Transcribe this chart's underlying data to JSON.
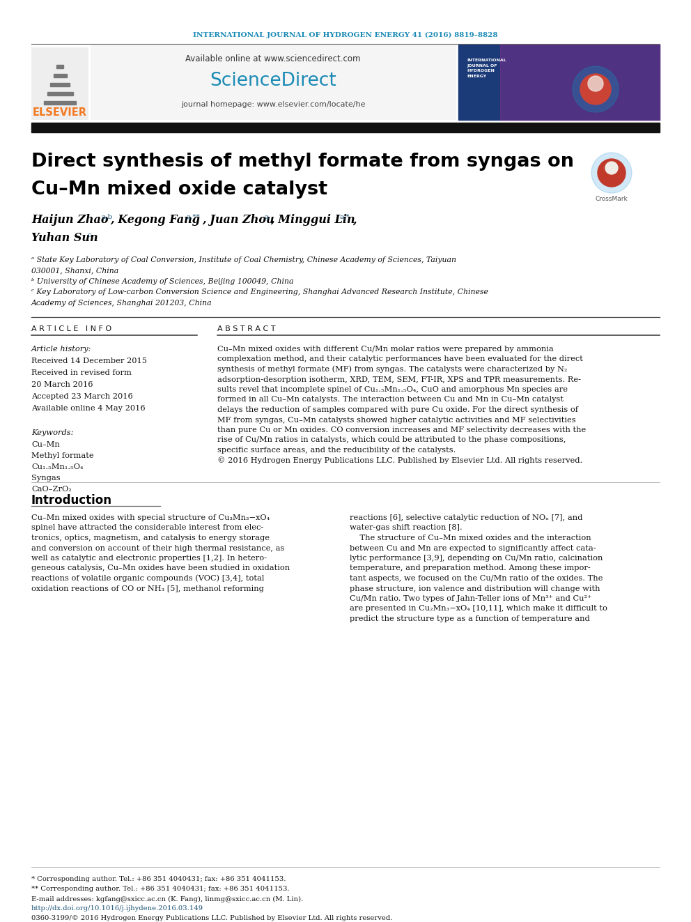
{
  "journal_header": "INTERNATIONAL JOURNAL OF HYDROGEN ENERGY 41 (2016) 8819–8828",
  "journal_header_color": "#1a8ab5",
  "available_online": "Available online at www.sciencedirect.com",
  "sciencedirect_color": "#1a8ab5",
  "journal_homepage": "journal homepage: www.elsevier.com/locate/he",
  "elsevier_color": "#f47920",
  "title_line1": "Direct synthesis of methyl formate from syngas on",
  "title_line2": "Cu–Mn mixed oxide catalyst",
  "article_info_header": "A R T I C L E   I N F O",
  "abstract_header": "A B S T R A C T",
  "abstract_lines": [
    "Cu–Mn mixed oxides with different Cu/Mn molar ratios were prepared by ammonia",
    "complexation method, and their catalytic performances have been evaluated for the direct",
    "synthesis of methyl formate (MF) from syngas. The catalysts were characterized by N₂",
    "adsorption-desorption isotherm, XRD, TEM, SEM, FT-IR, XPS and TPR measurements. Re-",
    "sults revel that incomplete spinel of Cu₁.₅Mn₁.₅O₄, CuO and amorphous Mn species are",
    "formed in all Cu–Mn catalysts. The interaction between Cu and Mn in Cu–Mn catalyst",
    "delays the reduction of samples compared with pure Cu oxide. For the direct synthesis of",
    "MF from syngas, Cu–Mn catalysts showed higher catalytic activities and MF selectivities",
    "than pure Cu or Mn oxides. CO conversion increases and MF selectivity decreases with the",
    "rise of Cu/Mn ratios in catalysts, which could be attributed to the phase compositions,",
    "specific surface areas, and the reducibility of the catalysts.",
    "© 2016 Hydrogen Energy Publications LLC. Published by Elsevier Ltd. All rights reserved."
  ],
  "keywords": [
    "Cu–Mn",
    "Methyl formate",
    "Cu₁.₅Mn₁.₅O₄",
    "Syngas",
    "CaO–ZrO₂"
  ],
  "intro_col1_lines": [
    "Cu–Mn mixed oxides with special structure of Cu₃Mn₃−xO₄",
    "spinel have attracted the considerable interest from elec-",
    "tronics, optics, magnetism, and catalysis to energy storage",
    "and conversion on account of their high thermal resistance, as",
    "well as catalytic and electronic properties [1,2]. In hetero-",
    "geneous catalysis, Cu–Mn oxides have been studied in oxidation",
    "reactions of volatile organic compounds (VOC) [3,4], total",
    "oxidation reactions of CO or NH₃ [5], methanol reforming"
  ],
  "intro_col2_lines": [
    "reactions [6], selective catalytic reduction of NOₓ [7], and",
    "water-gas shift reaction [8].",
    "    The structure of Cu–Mn mixed oxides and the interaction",
    "between Cu and Mn are expected to significantly affect cata-",
    "lytic performance [3,9], depending on Cu/Mn ratio, calcination",
    "temperature, and preparation method. Among these impor-",
    "tant aspects, we focused on the Cu/Mn ratio of the oxides. The",
    "phase structure, ion valence and distribution will change with",
    "Cu/Mn ratio. Two types of Jahn-Teller ions of Mn³⁺ and Cu²⁺",
    "are presented in Cu₂Mn₃−xO₄ [10,11], which make it difficult to",
    "predict the structure type as a function of temperature and"
  ],
  "footnote_issn": "0360-3199/© 2016 Hydrogen Energy Publications LLC. Published by Elsevier Ltd. All rights reserved.",
  "link_color": "#1a5276",
  "doi_color": "#1a5276",
  "bg_color": "#ffffff",
  "black": "#000000",
  "header_bar_color": "#111111"
}
